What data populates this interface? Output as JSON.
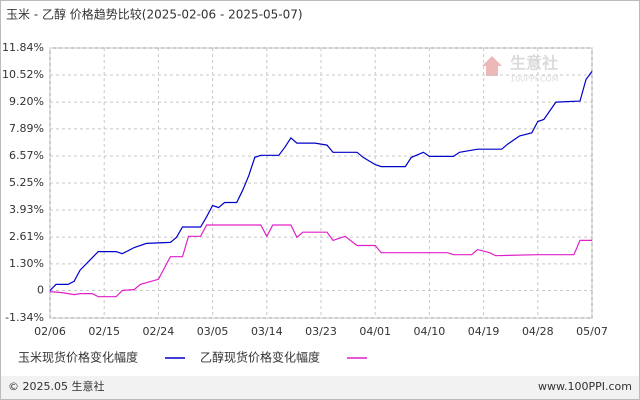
{
  "chart_data": {
    "type": "line",
    "title": "玉米 - 乙醇 价格趋势比较(2025-02-06 - 2025-05-07)",
    "watermark": [
      "生意社",
      "100PPI.COM"
    ],
    "copyright": "© 2025.05 生意社",
    "source": "www.100PPI.com",
    "xlim": [
      "02/06",
      "05/07"
    ],
    "xticks": [
      "02/06",
      "02/15",
      "02/24",
      "03/05",
      "03/14",
      "03/23",
      "04/01",
      "04/10",
      "04/19",
      "04/28",
      "05/07"
    ],
    "ylim": [
      -1.34,
      11.84
    ],
    "yticks": [
      {
        "value": 11.84,
        "label": "11.84%"
      },
      {
        "value": 10.52,
        "label": "10.52%"
      },
      {
        "value": 9.2,
        "label": "9.20%"
      },
      {
        "value": 7.89,
        "label": "7.89%"
      },
      {
        "value": 6.57,
        "label": "6.57%"
      },
      {
        "value": 5.25,
        "label": "5.25%"
      },
      {
        "value": 3.93,
        "label": "3.93%"
      },
      {
        "value": 2.61,
        "label": "2.61%"
      },
      {
        "value": 1.3,
        "label": "1.30%"
      },
      0,
      {
        "value": -1.34,
        "label": "-1.34%"
      }
    ],
    "grid": true,
    "series": [
      {
        "name": "玉米现货价格变化幅度",
        "color": "#0000cc",
        "x": [
          "02/06",
          "02/07",
          "02/09",
          "02/10",
          "02/11",
          "02/13",
          "02/14",
          "02/17",
          "02/18",
          "02/20",
          "02/22",
          "02/26",
          "02/27",
          "02/28",
          "03/03",
          "03/04",
          "03/05",
          "03/06",
          "03/07",
          "03/09",
          "03/10",
          "03/11",
          "03/12",
          "03/13",
          "03/16",
          "03/17",
          "03/18",
          "03/19",
          "03/22",
          "03/24",
          "03/25",
          "03/29",
          "03/30",
          "04/01",
          "04/02",
          "04/06",
          "04/07",
          "04/09",
          "04/10",
          "04/14",
          "04/15",
          "04/18",
          "04/22",
          "04/23",
          "04/25",
          "04/27",
          "04/28",
          "04/29",
          "05/01",
          "05/05",
          "05/06",
          "05/07"
        ],
        "values": [
          0,
          0.3,
          0.3,
          0.45,
          1.0,
          1.6,
          1.9,
          1.9,
          1.8,
          2.1,
          2.3,
          2.35,
          2.6,
          3.1,
          3.1,
          3.6,
          4.15,
          4.05,
          4.3,
          4.3,
          4.9,
          5.6,
          6.5,
          6.6,
          6.6,
          7.0,
          7.45,
          7.2,
          7.2,
          7.1,
          6.75,
          6.75,
          6.5,
          6.15,
          6.05,
          6.05,
          6.5,
          6.75,
          6.55,
          6.55,
          6.75,
          6.9,
          6.9,
          7.15,
          7.55,
          7.7,
          8.25,
          8.35,
          9.2,
          9.25,
          10.3,
          10.7
        ]
      },
      {
        "name": "乙醇现货价格变化幅度",
        "color": "#e020c8",
        "x": [
          "02/06",
          "02/08",
          "02/10",
          "02/11",
          "02/13",
          "02/14",
          "02/17",
          "02/18",
          "02/20",
          "02/21",
          "02/24",
          "02/25",
          "02/26",
          "02/28",
          "03/01",
          "03/03",
          "03/04",
          "03/13",
          "03/14",
          "03/15",
          "03/18",
          "03/19",
          "03/20",
          "03/24",
          "03/25",
          "03/27",
          "03/29",
          "04/01",
          "04/02",
          "04/13",
          "04/14",
          "04/17",
          "04/18",
          "04/20",
          "04/21",
          "04/28",
          "05/04",
          "05/05",
          "05/07"
        ],
        "values": [
          -0.05,
          -0.1,
          -0.2,
          -0.15,
          -0.15,
          -0.3,
          -0.3,
          0,
          0.05,
          0.3,
          0.55,
          1.1,
          1.65,
          1.65,
          2.65,
          2.65,
          3.2,
          3.2,
          2.65,
          3.2,
          3.2,
          2.6,
          2.85,
          2.85,
          2.45,
          2.65,
          2.2,
          2.2,
          1.85,
          1.85,
          1.75,
          1.75,
          2.0,
          1.85,
          1.7,
          1.75,
          1.75,
          2.45,
          2.45
        ]
      }
    ]
  }
}
